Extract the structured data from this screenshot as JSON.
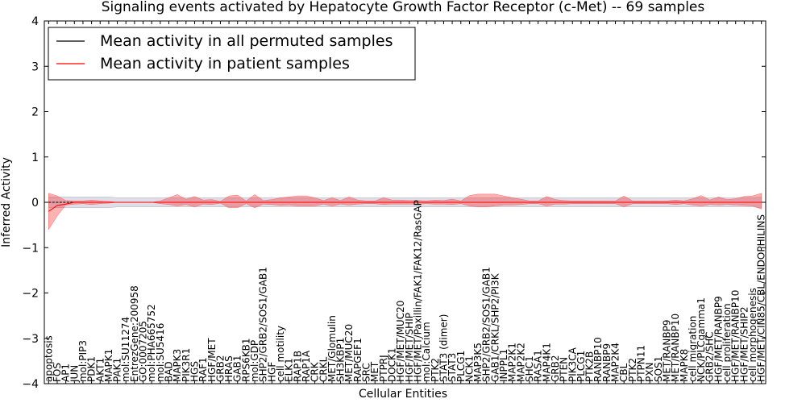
{
  "chart_data": {
    "type": "line",
    "title": "Signaling events activated by Hepatocyte Growth Factor Receptor (c-Met) -- 69 samples",
    "xlabel": "Cellular Entities",
    "ylabel": "Inferred Activity",
    "ylim": [
      -4,
      4
    ],
    "yticks": [
      -4,
      -3,
      -2,
      -1,
      0,
      1,
      2,
      3,
      4
    ],
    "ytick_labels": [
      "−4",
      "−3",
      "−2",
      "−1",
      "0",
      "1",
      "2",
      "3",
      "4"
    ],
    "legend": {
      "placement": "top-left",
      "entries": [
        {
          "label": "Mean activity in all permuted samples",
          "color": "#000000"
        },
        {
          "label": "Mean activity in patient samples",
          "color": "#ff0000"
        }
      ]
    },
    "categories": [
      "apoptosis",
      "FOS",
      "AP1",
      "JUN",
      "mol:PIP3",
      "PDK1",
      "AKT1",
      "MAPK1",
      "PAK1",
      "mol:SU11274",
      "EntrezGene:200958",
      "GO:0007205",
      "mol:PHA665752",
      "mol:SU5416",
      "BAD",
      "MAPK3",
      "PIK3R1",
      "HGS",
      "RAF1",
      "HGF/MET",
      "GRB2",
      "HRAS",
      "GAB1",
      "RPS6KB1",
      "mol:GDP",
      "SHP2/GRB2/SOS1/GAB1",
      "HGF",
      "cell motility",
      "ELK1",
      "RAP1B",
      "RAP1A",
      "CRK",
      "CRKL",
      "MET/Glomulin",
      "SH3KBP1",
      "MET/MUC20",
      "RAPGEF1",
      "SRC",
      "MET",
      "PTPRJ",
      "DOCK1",
      "HGF/MET/MUC20",
      "HGF/MET/SHIP",
      "HGF/MET/Paxillin/FAK1/FAK12/RasGAP",
      "mol:Calcium",
      "PTK2",
      "STAT3 (dimer)",
      "STAT3",
      "PLCG1",
      "NCK1",
      "MAP3K5",
      "SHP2/GRB2/SOS1/GAB1",
      "GAB1/CRKL/SHP2/PI3K",
      "INPPL1",
      "MAP2K1",
      "MAP2K2",
      "SHC1",
      "RASA1",
      "MAP4K1",
      "GRB2",
      "PTEN",
      "PIK3CA",
      "PLCG1",
      "PTK2B",
      "RANBP10",
      "RANBP9",
      "MAP2K4",
      "CBL",
      "PTK2",
      "PTPN11",
      "PXN",
      "SOS1",
      "MET/RANBP9",
      "MET/RANBP10",
      "MAPK8",
      "cell migration",
      "NCK/PLCgamma1",
      "GRB2/SHC",
      "HGF/MET/RANBP9",
      "cell proliferation",
      "HGF/MET/RANBP10",
      "HGF/MET/SHIP2",
      "cell morphogenesis",
      "HGF/MET/CIN85/CBL/ENDOPHILINS"
    ],
    "series": [
      {
        "name": "Mean activity in patient samples",
        "color": "#ff0000",
        "values": [
          -0.2,
          -0.07,
          -0.04,
          0,
          0,
          0,
          0,
          0,
          0,
          0,
          0,
          0,
          0,
          0,
          0,
          0,
          0,
          0,
          0,
          0,
          0,
          0,
          0,
          0,
          0,
          0,
          0,
          0,
          0,
          0,
          0,
          0,
          0,
          0,
          0,
          0,
          0,
          0,
          0,
          0,
          0,
          0,
          0,
          0,
          0,
          0,
          0,
          0,
          0,
          0,
          0,
          0,
          0,
          0,
          0,
          0,
          0,
          0,
          0,
          0,
          0,
          0,
          0,
          0,
          0,
          0,
          0,
          0,
          0,
          0,
          0,
          0,
          0,
          0,
          0,
          0,
          0,
          0,
          0,
          0,
          0,
          0,
          0,
          0
        ],
        "upper": [
          0.2,
          0.14,
          0.04,
          0.03,
          0.03,
          0.05,
          0.03,
          0.02,
          0,
          0,
          0,
          0,
          0,
          0.03,
          0.1,
          0.17,
          0.07,
          0.13,
          0.05,
          0.06,
          0.02,
          0.14,
          0.16,
          0.03,
          0.17,
          0.04,
          0.06,
          0.1,
          0.12,
          0.14,
          0.14,
          0.1,
          0.04,
          0.1,
          0.04,
          0.12,
          0.05,
          0.03,
          0.03,
          0.1,
          0.05,
          0.05,
          0.04,
          0.04,
          0.03,
          0.05,
          0.04,
          0.07,
          0.03,
          0.15,
          0.18,
          0.18,
          0.18,
          0.14,
          0.1,
          0.07,
          0.03,
          0.03,
          0.13,
          0.06,
          0.04,
          0.03,
          0.03,
          0.03,
          0.03,
          0.03,
          0.03,
          0.14,
          0.03,
          0.03,
          0.03,
          0.03,
          0.03,
          0.05,
          0.03,
          0.08,
          0.15,
          0.05,
          0.12,
          0.06,
          0.08,
          0.13,
          0.14,
          0.2
        ],
        "lower": [
          -0.6,
          -0.3,
          -0.06,
          -0.04,
          -0.03,
          -0.05,
          -0.03,
          -0.02,
          0,
          0,
          0,
          0,
          0,
          -0.03,
          -0.05,
          -0.08,
          -0.05,
          -0.1,
          -0.04,
          -0.05,
          -0.02,
          -0.12,
          -0.12,
          -0.03,
          -0.12,
          -0.04,
          -0.05,
          -0.07,
          -0.06,
          -0.08,
          -0.08,
          -0.08,
          -0.04,
          -0.08,
          -0.04,
          -0.06,
          -0.04,
          -0.03,
          -0.03,
          -0.05,
          -0.04,
          -0.04,
          -0.04,
          -0.04,
          -0.03,
          -0.04,
          -0.04,
          -0.05,
          -0.03,
          -0.08,
          -0.1,
          -0.1,
          -0.08,
          -0.06,
          -0.06,
          -0.05,
          -0.03,
          -0.03,
          -0.08,
          -0.04,
          -0.04,
          -0.03,
          -0.03,
          -0.03,
          -0.03,
          -0.03,
          -0.03,
          -0.1,
          -0.03,
          -0.03,
          -0.03,
          -0.03,
          -0.03,
          -0.05,
          -0.03,
          -0.06,
          -0.08,
          -0.05,
          -0.06,
          -0.05,
          -0.06,
          -0.07,
          -0.08,
          -0.15
        ]
      },
      {
        "name": "Mean activity in all permuted samples",
        "color": "#000000",
        "values": [
          0,
          0,
          0,
          0,
          0,
          0,
          0,
          0,
          0,
          0,
          0,
          0,
          0,
          0,
          0,
          0,
          0,
          0,
          0,
          0,
          0,
          0,
          0,
          0,
          0,
          0,
          0,
          0,
          0,
          0,
          0,
          0,
          0,
          0,
          0,
          0,
          0,
          0,
          0,
          0,
          0,
          0,
          0,
          0,
          0,
          0,
          0,
          0,
          0,
          0,
          0,
          0,
          0,
          0,
          0,
          0,
          0,
          0,
          0,
          0,
          0,
          0,
          0,
          0,
          0,
          0,
          0,
          0,
          0,
          0,
          0,
          0,
          0,
          0,
          0,
          0,
          0,
          0,
          0,
          0,
          0,
          0,
          0,
          0
        ],
        "upper": [
          0.12,
          0.12,
          0.12,
          0.12,
          0.12,
          0.12,
          0.12,
          0.12,
          0.1,
          0.1,
          0.1,
          0.1,
          0.1,
          0.1,
          0.1,
          0.1,
          0.1,
          0.1,
          0.1,
          0.1,
          0.1,
          0.1,
          0.1,
          0.1,
          0.1,
          0.1,
          0.1,
          0.1,
          0.1,
          0.1,
          0.1,
          0.1,
          0.1,
          0.1,
          0.1,
          0.1,
          0.1,
          0.1,
          0.1,
          0.1,
          0.1,
          0.1,
          0.1,
          0.1,
          0.1,
          0.1,
          0.1,
          0.1,
          0.1,
          0.1,
          0.1,
          0.1,
          0.1,
          0.1,
          0.1,
          0.1,
          0.1,
          0.1,
          0.1,
          0.1,
          0.1,
          0.1,
          0.1,
          0.1,
          0.1,
          0.1,
          0.1,
          0.1,
          0.1,
          0.1,
          0.1,
          0.1,
          0.1,
          0.1,
          0.1,
          0.1,
          0.1,
          0.1,
          0.1,
          0.1,
          0.1,
          0.1,
          0.1,
          0.12
        ],
        "lower": [
          -0.12,
          -0.12,
          -0.12,
          -0.12,
          -0.12,
          -0.12,
          -0.12,
          -0.12,
          -0.1,
          -0.1,
          -0.1,
          -0.1,
          -0.1,
          -0.1,
          -0.1,
          -0.1,
          -0.1,
          -0.1,
          -0.1,
          -0.1,
          -0.1,
          -0.1,
          -0.1,
          -0.1,
          -0.1,
          -0.1,
          -0.1,
          -0.1,
          -0.1,
          -0.1,
          -0.1,
          -0.1,
          -0.1,
          -0.1,
          -0.1,
          -0.1,
          -0.1,
          -0.1,
          -0.1,
          -0.1,
          -0.1,
          -0.1,
          -0.1,
          -0.1,
          -0.1,
          -0.1,
          -0.1,
          -0.1,
          -0.1,
          -0.1,
          -0.1,
          -0.1,
          -0.1,
          -0.1,
          -0.1,
          -0.1,
          -0.1,
          -0.1,
          -0.1,
          -0.1,
          -0.1,
          -0.1,
          -0.1,
          -0.1,
          -0.1,
          -0.1,
          -0.1,
          -0.1,
          -0.1,
          -0.1,
          -0.1,
          -0.1,
          -0.1,
          -0.1,
          -0.1,
          -0.1,
          -0.1,
          -0.1,
          -0.1,
          -0.1,
          -0.1,
          -0.1,
          -0.1,
          -0.12
        ]
      }
    ]
  }
}
